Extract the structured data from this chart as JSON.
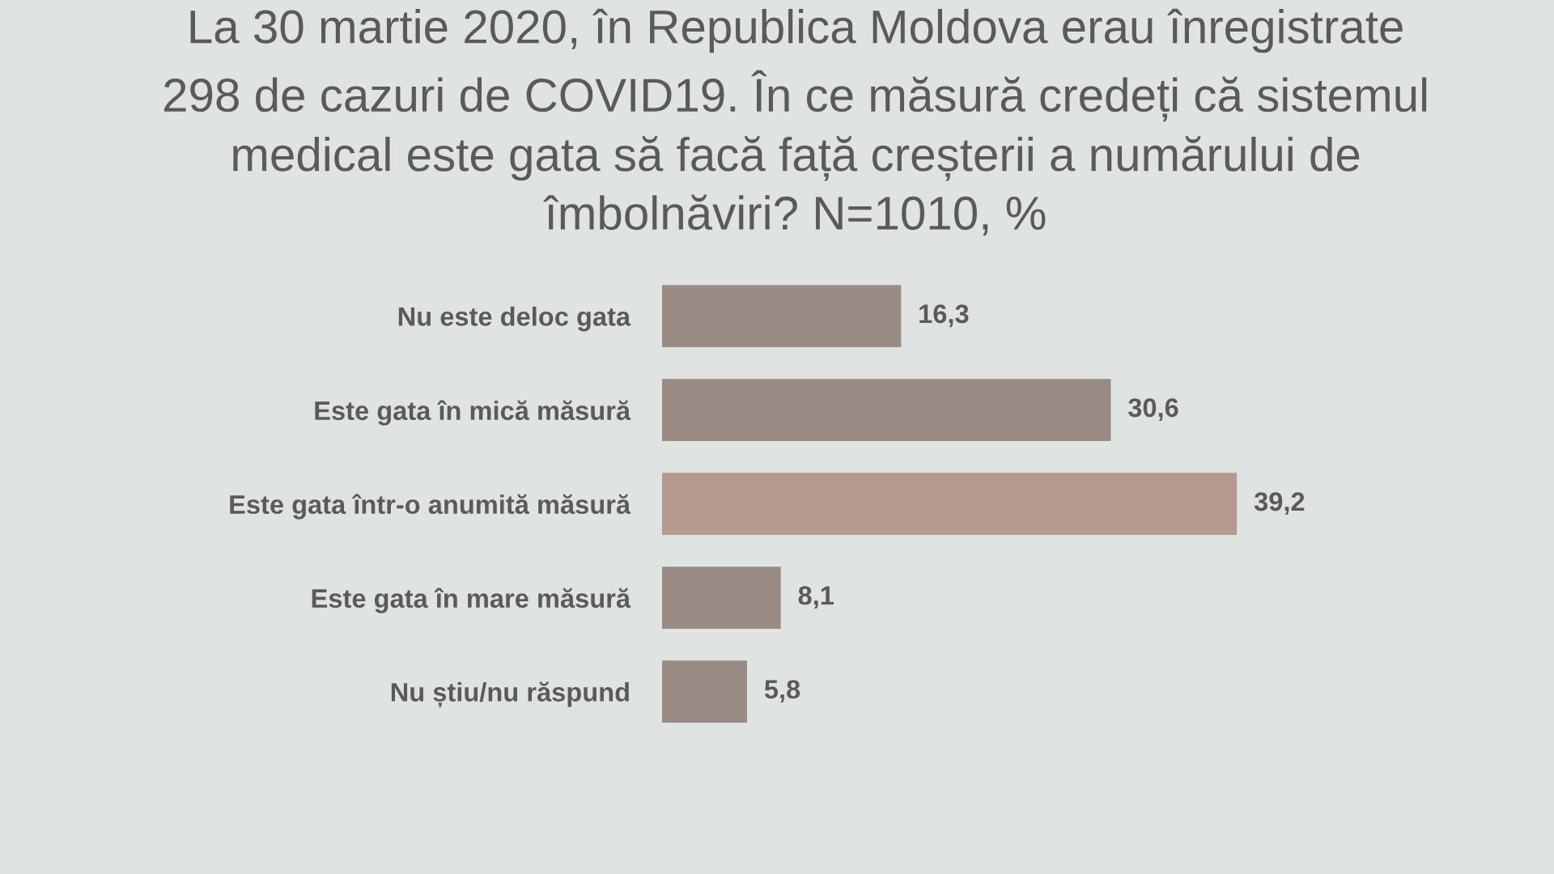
{
  "chart_data": {
    "type": "bar",
    "orientation": "horizontal",
    "title": "La 30 martie 2020, în Republica Moldova erau înregistrate\n298 de cazuri de COVID19. În ce măsură credeți că sistemul\nmedical este gata să facă față creșterii a numărului de\nîmbolnăviri? N=1010, %",
    "categories": [
      "Nu este deloc gata",
      "Este gata în mică măsură",
      "Este gata într-o anumită măsură",
      "Este gata în mare măsură",
      "Nu știu/nu răspund"
    ],
    "values": [
      16.3,
      30.6,
      39.2,
      8.1,
      5.8
    ],
    "value_labels": [
      "16,3",
      "30,6",
      "39,2",
      "8,1",
      "5,8"
    ],
    "colors": [
      "#9a8b85",
      "#9a8b85",
      "#b59a90",
      "#9a8b85",
      "#9a8b85"
    ],
    "tick_labels": "y"
  }
}
